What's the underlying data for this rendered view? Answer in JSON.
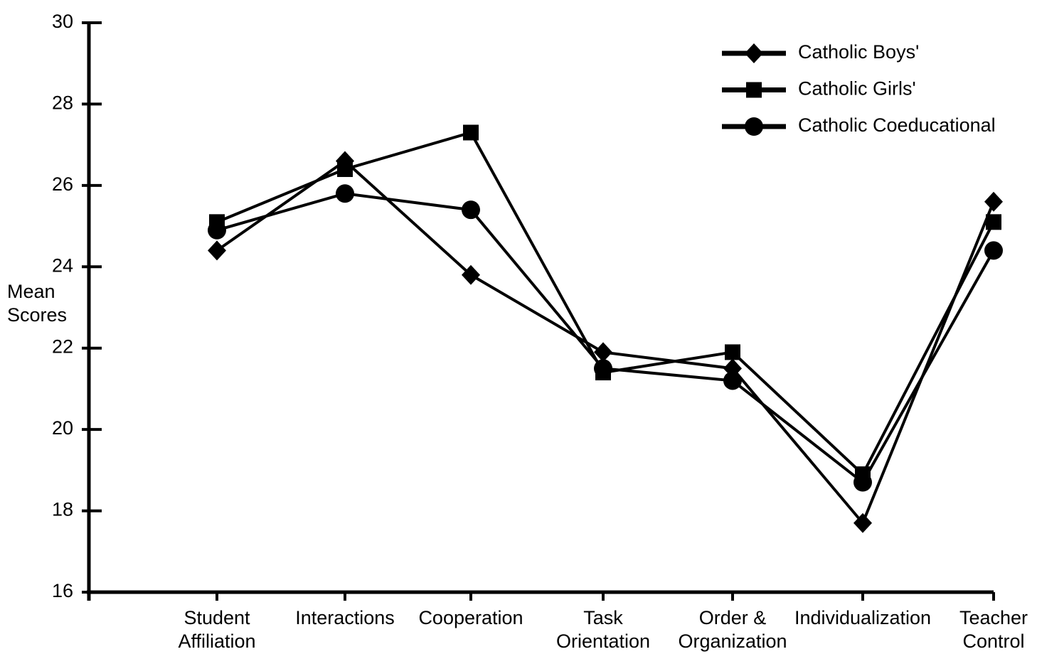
{
  "chart_data": {
    "type": "line",
    "y_label": "Mean\nScores",
    "categories": [
      "Student\nAffiliation",
      "Interactions",
      "Cooperation",
      "Task\nOrientation",
      "Order &\nOrganization",
      "Individualization",
      "Teacher\nControl"
    ],
    "series": [
      {
        "name": "Catholic Boys'",
        "color": "#000000",
        "marker": "diamond",
        "values": [
          24.4,
          26.6,
          23.8,
          21.9,
          21.5,
          17.7,
          25.6
        ]
      },
      {
        "name": "Catholic Girls'",
        "color": "#000000",
        "marker": "square",
        "values": [
          25.1,
          26.4,
          27.3,
          21.4,
          21.9,
          18.9,
          25.1
        ]
      },
      {
        "name": "Catholic Coeducational",
        "color": "#000000",
        "marker": "circle",
        "values": [
          24.9,
          25.8,
          25.4,
          21.5,
          21.2,
          18.7,
          24.4
        ]
      }
    ],
    "ylim": [
      16,
      30
    ],
    "yticks": [
      16,
      18,
      20,
      22,
      24,
      26,
      28,
      30
    ],
    "grid": false,
    "legend": "upper right"
  }
}
